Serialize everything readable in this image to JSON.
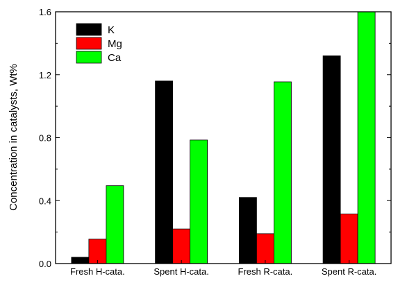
{
  "chart_data": {
    "type": "bar",
    "title": "",
    "xlabel": "",
    "ylabel": "Concentration in catalysts, Wt%",
    "categories": [
      "Fresh H-cata.",
      "Spent H-cata.",
      "Fresh R-cata.",
      "Spent R-cata."
    ],
    "series": [
      {
        "name": "K",
        "color": "#000000",
        "values": [
          0.04,
          1.16,
          0.42,
          1.32
        ]
      },
      {
        "name": "Mg",
        "color": "#ff0000",
        "values": [
          0.155,
          0.22,
          0.19,
          0.315
        ]
      },
      {
        "name": "Ca",
        "color": "#00ff00",
        "values": [
          0.495,
          0.785,
          1.155,
          1.6
        ]
      }
    ],
    "ylim": [
      0,
      1.6
    ],
    "yticks": [
      "0.0",
      "0.4",
      "0.8",
      "1.2",
      "1.6"
    ],
    "grid": false,
    "legend_position": "top-left"
  }
}
